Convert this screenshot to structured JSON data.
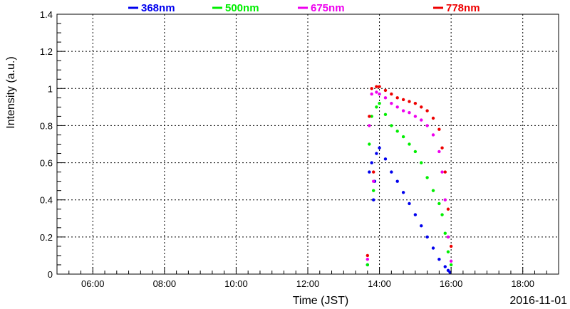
{
  "chart_data": {
    "type": "scatter",
    "ylabel": "Intensity (a.u.)",
    "xlabel": "Time (JST)",
    "date_label": "2016-11-01",
    "xlim": [
      "05:00",
      "19:00"
    ],
    "ylim": [
      0,
      1.4
    ],
    "x_ticks": [
      "06:00",
      "08:00",
      "10:00",
      "12:00",
      "14:00",
      "16:00",
      "18:00"
    ],
    "y_ticks": [
      "0",
      "0.2",
      "0.4",
      "0.6",
      "0.8",
      "1",
      "1.2",
      "1.4"
    ],
    "grid": true,
    "legend_position": "top",
    "series": [
      {
        "name": "368nm",
        "color": "#0000ee",
        "x": [
          "13:40",
          "13:43",
          "13:47",
          "13:50",
          "13:52",
          "13:55",
          "14:00",
          "14:10",
          "14:20",
          "14:30",
          "14:40",
          "14:50",
          "15:00",
          "15:10",
          "15:20",
          "15:30",
          "15:40",
          "15:50",
          "15:55",
          "15:58"
        ],
        "y": [
          0.05,
          0.55,
          0.6,
          0.4,
          0.5,
          0.65,
          0.68,
          0.62,
          0.55,
          0.5,
          0.44,
          0.38,
          0.32,
          0.26,
          0.2,
          0.14,
          0.08,
          0.04,
          0.02,
          0.01
        ]
      },
      {
        "name": "500nm",
        "color": "#00ee00",
        "x": [
          "13:40",
          "13:43",
          "13:47",
          "13:50",
          "13:55",
          "14:00",
          "14:10",
          "14:20",
          "14:30",
          "14:40",
          "14:50",
          "15:00",
          "15:10",
          "15:20",
          "15:30",
          "15:40",
          "15:45",
          "15:50",
          "15:55",
          "16:00"
        ],
        "y": [
          0.05,
          0.7,
          0.85,
          0.45,
          0.9,
          0.92,
          0.86,
          0.8,
          0.77,
          0.74,
          0.7,
          0.66,
          0.6,
          0.52,
          0.45,
          0.38,
          0.32,
          0.22,
          0.12,
          0.05
        ]
      },
      {
        "name": "675nm",
        "color": "#ee00ee",
        "x": [
          "13:40",
          "13:43",
          "13:47",
          "13:50",
          "13:55",
          "14:00",
          "14:10",
          "14:20",
          "14:30",
          "14:40",
          "14:50",
          "15:00",
          "15:10",
          "15:20",
          "15:30",
          "15:40",
          "15:45",
          "15:50",
          "15:55",
          "16:00"
        ],
        "y": [
          0.08,
          0.8,
          0.97,
          0.5,
          0.98,
          0.97,
          0.95,
          0.92,
          0.9,
          0.88,
          0.87,
          0.85,
          0.83,
          0.8,
          0.75,
          0.66,
          0.55,
          0.4,
          0.2,
          0.07
        ]
      },
      {
        "name": "778nm",
        "color": "#ee0000",
        "x": [
          "13:40",
          "13:43",
          "13:47",
          "13:50",
          "13:55",
          "14:00",
          "14:10",
          "14:20",
          "14:30",
          "14:40",
          "14:50",
          "15:00",
          "15:10",
          "15:20",
          "15:30",
          "15:40",
          "15:45",
          "15:50",
          "15:55",
          "16:00"
        ],
        "y": [
          0.1,
          0.85,
          1.0,
          0.55,
          1.01,
          1.01,
          0.99,
          0.97,
          0.95,
          0.94,
          0.93,
          0.92,
          0.9,
          0.88,
          0.84,
          0.78,
          0.68,
          0.55,
          0.35,
          0.15
        ]
      }
    ]
  }
}
